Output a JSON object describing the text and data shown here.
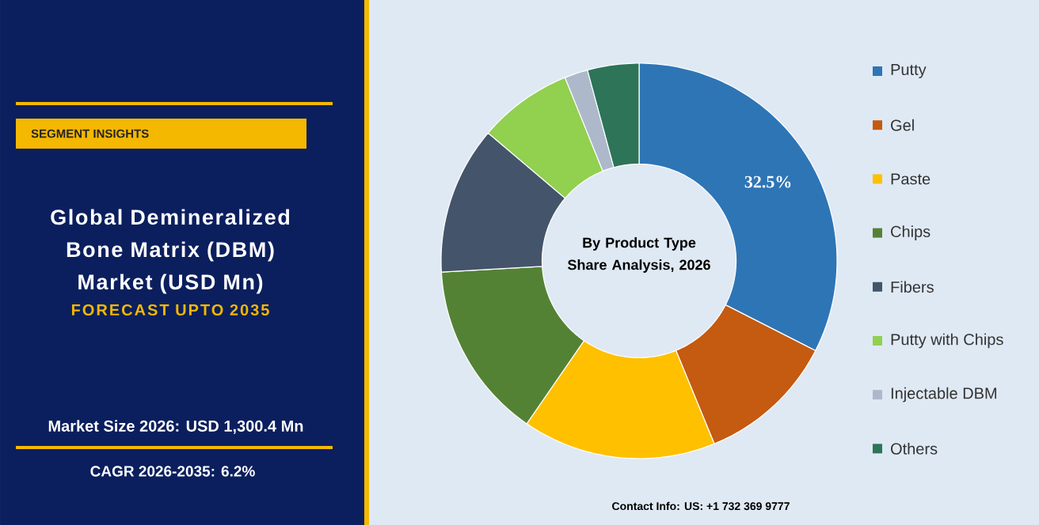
{
  "chart_data": {
    "type": "donut",
    "title": "Global Demineralized Bone Matrix (DBM) Market (USD Mn)",
    "subtitle": "FORECAST UPTO 2035",
    "annotations": [
      "SEGMENT INSIGHTS",
      "Market Size 2026: USD 1,300.4 Mn",
      "CAGR 2026-2035: 6.2%",
      "By Product Type Share Analysis, 2026",
      "Contact Info: US: +1 732 369 9777"
    ],
    "categories": [
      "Putty",
      "Gel",
      "Paste",
      "Chips",
      "Fibers",
      "Putty with Chips",
      "Injectable DBM",
      "Others"
    ],
    "values": [
      32.5,
      11.3,
      15.8,
      14.5,
      12.1,
      7.7,
      1.9,
      4.2
    ],
    "colors": [
      "#2e75b6",
      "#c55a11",
      "#ffc000",
      "#548235",
      "#44546a",
      "#92d050",
      "#adb9ca",
      "#2d7458"
    ],
    "value_labels": [
      "32.5%",
      null,
      null,
      null,
      null,
      null,
      null,
      null
    ],
    "legend": "right"
  }
}
